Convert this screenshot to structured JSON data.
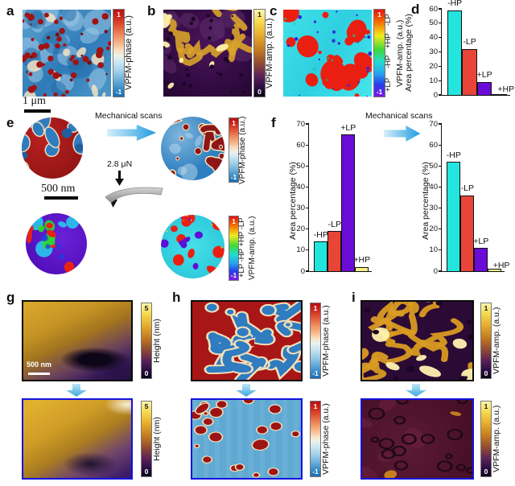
{
  "panels": {
    "a": {
      "label": "a",
      "scalebar": "1 μm",
      "colorbar": {
        "tick_top": "1",
        "tick_bottom": "-1",
        "label": "VPFM-phase (a.u.)"
      }
    },
    "b": {
      "label": "b",
      "colorbar": {
        "tick_top": "1",
        "tick_bottom": "0",
        "label": "VPFM-amp. (a.u.)"
      }
    },
    "c": {
      "label": "c",
      "colorbar": {
        "tick_top": "1",
        "tick_bottom": "-1",
        "label": "VPFM-amp. (a.u.)",
        "zone_labels_top_to_bottom": [
          "-LP",
          "+HP",
          "-HP",
          "+LP"
        ]
      }
    },
    "d": {
      "label": "d"
    },
    "e": {
      "label": "e",
      "scalebar": "500 nm",
      "arrow_label": "Mechanical scans",
      "force_label": "2.8 μN",
      "colorbar_phase": {
        "tick_top": "1",
        "tick_bottom": "-1",
        "label": "VPFM-phase (a.u.)"
      },
      "colorbar_amp": {
        "tick_top": "1",
        "tick_bottom": "-1",
        "label": "VPFM-amp. (a.u.)",
        "zone_text": "+LP -HP  +HP -LP"
      }
    },
    "f": {
      "label": "f",
      "arrow_label": "Mechanical scans"
    },
    "g": {
      "label": "g",
      "scalebar": "500 nm",
      "colorbar_top": {
        "tick_top": "5",
        "tick_bottom": "0",
        "label": "Height (nm)"
      },
      "colorbar_bottom": {
        "tick_top": "5",
        "tick_bottom": "0",
        "label": "Height (nm)"
      }
    },
    "h": {
      "label": "h",
      "colorbar_top": {
        "tick_top": "1",
        "tick_bottom": "-1",
        "label": "VPFM-phase (a.u.)"
      },
      "colorbar_bottom": {
        "tick_top": "1",
        "tick_bottom": "-1",
        "label": "VPFM-phase (a.u.)"
      }
    },
    "i": {
      "label": "i",
      "colorbar_top": {
        "tick_top": "1",
        "tick_bottom": "0",
        "label": "VPFM-amp. (a.u.)"
      },
      "colorbar_bottom": {
        "tick_top": "1",
        "tick_bottom": "0",
        "label": "VPFM-amp. (a.u.)"
      }
    }
  },
  "chart_data": [
    {
      "id": "d",
      "type": "bar",
      "title": "",
      "categories": [
        "-HP",
        "-LP",
        "+LP",
        "+HP"
      ],
      "values": [
        59,
        32,
        9,
        0.5
      ],
      "bar_colors": [
        "#22e6de",
        "#e84438",
        "#6a0cd6",
        "#f5f388"
      ],
      "xlabel": "",
      "ylabel": "Area percentage (%)",
      "ylim": [
        0,
        60
      ],
      "ytick_step": 10,
      "grid": false,
      "legend": "none"
    },
    {
      "id": "f_before",
      "type": "bar",
      "title": "",
      "categories": [
        "-HP",
        "-LP",
        "+LP",
        "+HP"
      ],
      "values": [
        14,
        19,
        65,
        2
      ],
      "bar_colors": [
        "#22e6de",
        "#e84438",
        "#6a0cd6",
        "#f5f388"
      ],
      "xlabel": "",
      "ylabel": "Area percentage (%)",
      "ylim": [
        0,
        70
      ],
      "ytick_step": 10,
      "grid": false,
      "legend": "none"
    },
    {
      "id": "f_after",
      "type": "bar",
      "title": "",
      "categories": [
        "-HP",
        "-LP",
        "+LP",
        "+HP"
      ],
      "values": [
        52,
        36,
        11,
        1
      ],
      "bar_colors": [
        "#22e6de",
        "#e84438",
        "#6a0cd6",
        "#f5f388"
      ],
      "xlabel": "",
      "ylabel": "Area percentage (%)",
      "ylim": [
        0,
        70
      ],
      "ytick_step": 10,
      "grid": false,
      "legend": "none"
    }
  ]
}
